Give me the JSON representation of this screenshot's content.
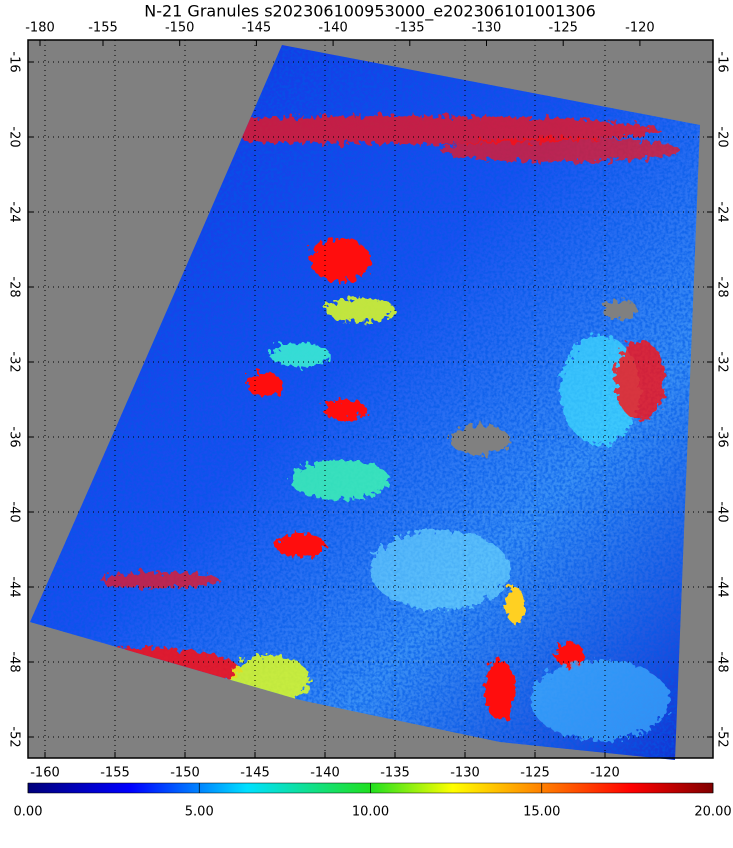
{
  "map": {
    "title": "N-21 Granules s202306100953000_e202306101001306",
    "top_lon_ticks": [
      -180,
      -155,
      -150,
      -145,
      -140,
      -135,
      -130,
      -125,
      -120
    ],
    "bottom_lon_ticks": [
      -160,
      -155,
      -150,
      -145,
      -140,
      -135,
      -130,
      -125,
      -120
    ],
    "lat_ticks": [
      -16,
      -20,
      -24,
      -28,
      -32,
      -36,
      -40,
      -44,
      -48,
      -52
    ],
    "colorbar": {
      "lim": [
        0,
        20
      ],
      "ticks": [
        {
          "value": 0,
          "label": "0.00"
        },
        {
          "value": 5,
          "label": "5.00"
        },
        {
          "value": 10,
          "label": "10.00"
        },
        {
          "value": 15,
          "label": "15.00"
        },
        {
          "value": 20,
          "label": "20.00"
        }
      ]
    }
  }
}
